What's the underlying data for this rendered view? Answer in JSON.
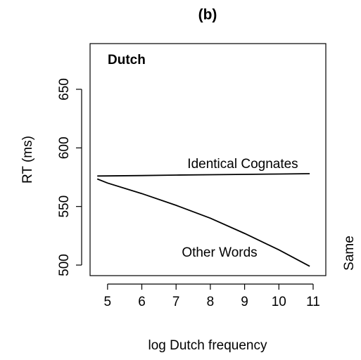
{
  "chart_data": {
    "type": "line",
    "title": "(b)",
    "panel_label": "Dutch",
    "side_text": "Same",
    "x_label": "log Dutch frequency",
    "y_label": "RT (ms)",
    "x": [
      4.7,
      5,
      6,
      7,
      8,
      9,
      10,
      10.9
    ],
    "series": [
      {
        "name": "Identical Cognates",
        "color": "#000000",
        "values": [
          576,
          576.1,
          576.4,
          576.8,
          577.1,
          577.4,
          577.7,
          578
        ]
      },
      {
        "name": "Other Words",
        "color": "#000000",
        "values": [
          573.5,
          570,
          561,
          551,
          540,
          527,
          513,
          499
        ]
      }
    ],
    "xlim": [
      4.49,
      11.37
    ],
    "ylim": [
      491,
      689
    ],
    "xticks": [
      5,
      6,
      7,
      8,
      9,
      10,
      11
    ],
    "yticks": [
      500,
      550,
      600,
      650
    ]
  }
}
